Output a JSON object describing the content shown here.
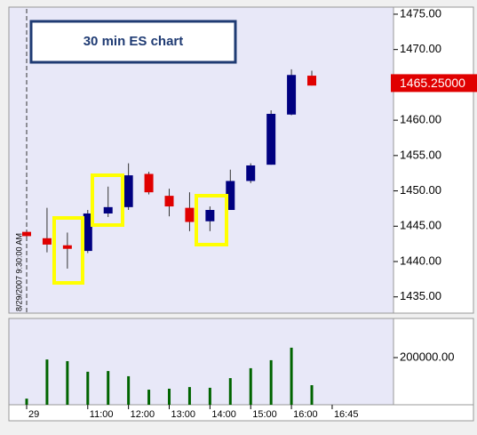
{
  "chart_data": [
    {
      "type": "candlestick",
      "title": "30 min ES chart",
      "annotation": "8/29/2007 9:30:00 AM",
      "open": [
        1444.2,
        1443.3,
        1442.3,
        1441.5,
        1446.8,
        1447.7,
        1452.4,
        1449.3,
        1447.6,
        1445.7,
        1447.3,
        1451.4,
        1453.7,
        1460.8,
        1466.3,
        null
      ],
      "high": [
        1444.5,
        1447.6,
        1444.1,
        1447.3,
        1450.6,
        1453.9,
        1452.7,
        1450.3,
        1449.8,
        1447.8,
        1453.0,
        1453.9,
        1461.4,
        1467.2,
        1467.0,
        null
      ],
      "low": [
        1443.3,
        1441.3,
        1439.0,
        1441.2,
        1446.3,
        1447.3,
        1449.5,
        1446.4,
        1444.3,
        1444.3,
        1447.3,
        1451.1,
        1453.7,
        1460.7,
        1464.9,
        null
      ],
      "close": [
        1443.6,
        1442.4,
        1441.8,
        1446.8,
        1447.7,
        1452.2,
        1449.8,
        1447.8,
        1445.6,
        1447.3,
        1451.4,
        1453.6,
        1460.9,
        1466.4,
        1464.9,
        null
      ],
      "up_color": "#000080",
      "down_color": "#e00000",
      "ylim": [
        1432.7,
        1475.75
      ],
      "yticks": [
        {
          "value": 1435,
          "label": "1435.00"
        },
        {
          "value": 1440,
          "label": "1440.00"
        },
        {
          "value": 1445,
          "label": "1445.00"
        },
        {
          "value": 1450,
          "label": "1450.00"
        },
        {
          "value": 1455,
          "label": "1455.00"
        },
        {
          "value": 1460,
          "label": "1460.00"
        },
        {
          "value": 1465,
          "label": "1465.00"
        },
        {
          "value": 1470,
          "label": "1470.00"
        },
        {
          "value": 1475,
          "label": "1475.00"
        }
      ],
      "last_price": {
        "value": 1465.25,
        "label": "1465.25000"
      }
    },
    {
      "type": "bar",
      "categories": [
        "29",
        null,
        null,
        "11:00",
        null,
        "12:00",
        null,
        "13:00",
        null,
        "14:00",
        null,
        "15:00",
        null,
        "16:00",
        null,
        "16:45"
      ],
      "values": [
        26000,
        192000,
        185000,
        140000,
        143000,
        121000,
        64000,
        68000,
        75000,
        72000,
        113000,
        155000,
        189000,
        242000,
        83000,
        null
      ],
      "color": "#006400",
      "ylim": [
        0,
        366000
      ],
      "yticks": [
        {
          "value": 200000,
          "label": "200000.00"
        }
      ]
    }
  ]
}
